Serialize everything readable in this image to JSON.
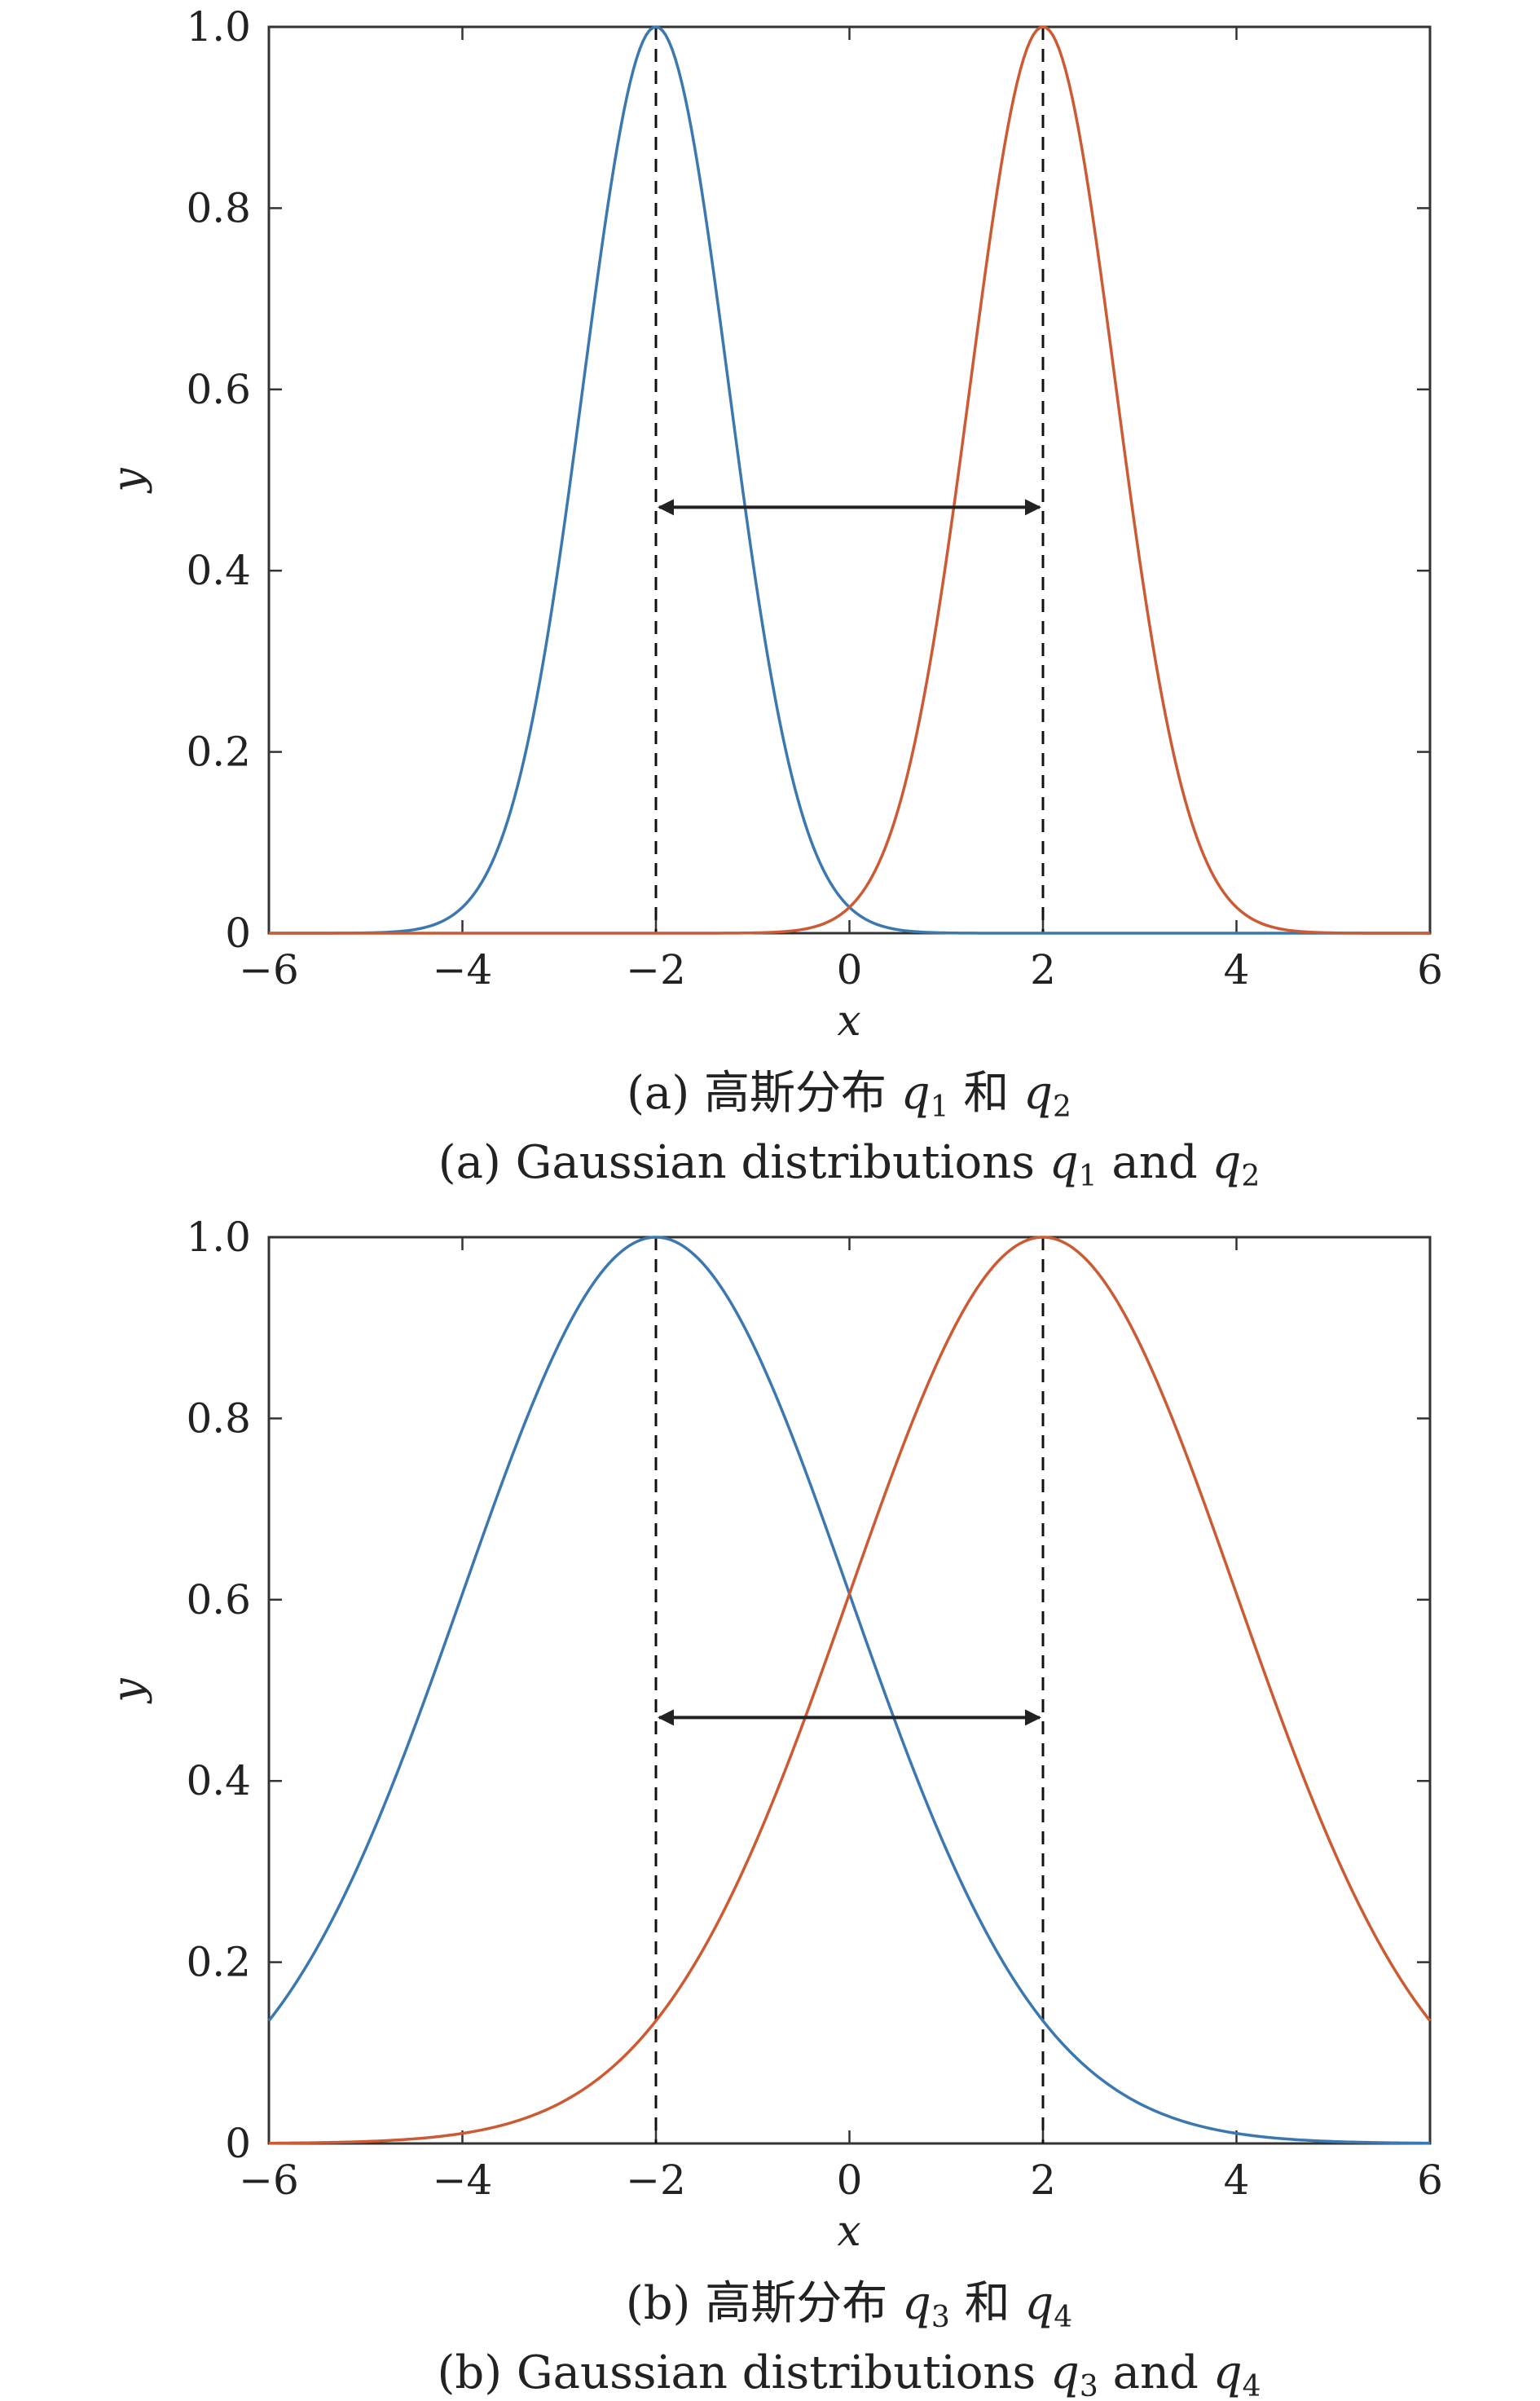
{
  "chart_data": [
    {
      "type": "line",
      "panel": "a",
      "xlabel": "x",
      "ylabel": "y",
      "xlim": [
        -6,
        6
      ],
      "ylim": [
        0,
        1
      ],
      "xticks": [
        -6,
        -4,
        -2,
        0,
        2,
        4,
        6
      ],
      "xtick_labels": [
        "−6",
        "−4",
        "−2",
        "0",
        "2",
        "4",
        "6"
      ],
      "yticks": [
        0,
        0.2,
        0.4,
        0.6,
        0.8,
        1.0
      ],
      "ytick_labels": [
        "0",
        "0.2",
        "0.4",
        "0.6",
        "0.8",
        "1.0"
      ],
      "grid": false,
      "series": [
        {
          "color": "#3b78b0",
          "mean": -2,
          "sigma": 0.75,
          "x": [
            -6,
            -5,
            -4,
            -3.5,
            -3,
            -2.5,
            -2,
            -1.5,
            -1,
            -0.5,
            0,
            1,
            2
          ],
          "y": [
            0.0,
            0.0,
            0.03,
            0.14,
            0.41,
            0.8,
            1.0,
            0.8,
            0.41,
            0.14,
            0.03,
            0.0,
            0.0
          ]
        },
        {
          "color": "#cc5a33",
          "mean": 2,
          "sigma": 0.75,
          "x": [
            -2,
            -1,
            0,
            0.5,
            1,
            1.5,
            2,
            2.5,
            3,
            3.5,
            4,
            5,
            6
          ],
          "y": [
            0.0,
            0.0,
            0.03,
            0.14,
            0.41,
            0.8,
            1.0,
            0.8,
            0.41,
            0.14,
            0.03,
            0.0,
            0.0
          ]
        }
      ],
      "reference_lines": {
        "x": [
          -2,
          2
        ],
        "style": "dashed",
        "color": "#111111"
      },
      "annotation": {
        "type": "double-arrow",
        "from_x": -2,
        "to_x": 2,
        "y": 0.47
      },
      "caption_zh": {
        "prefix": "(a) 高斯分布 ",
        "var1": "q",
        "sub1": "1",
        "mid": " 和 ",
        "var2": "q",
        "sub2": "2"
      },
      "caption_en": {
        "prefix": "(a) Gaussian distributions ",
        "var1": "q",
        "sub1": "1",
        "mid": " and ",
        "var2": "q",
        "sub2": "2"
      }
    },
    {
      "type": "line",
      "panel": "b",
      "xlabel": "x",
      "ylabel": "y",
      "xlim": [
        -6,
        6
      ],
      "ylim": [
        0,
        1
      ],
      "xticks": [
        -6,
        -4,
        -2,
        0,
        2,
        4,
        6
      ],
      "xtick_labels": [
        "−6",
        "−4",
        "−2",
        "0",
        "2",
        "4",
        "6"
      ],
      "yticks": [
        0,
        0.2,
        0.4,
        0.6,
        0.8,
        1.0
      ],
      "ytick_labels": [
        "0",
        "0.2",
        "0.4",
        "0.6",
        "0.8",
        "1.0"
      ],
      "grid": false,
      "series": [
        {
          "color": "#3b78b0",
          "mean": -2,
          "sigma": 2,
          "x": [
            -6,
            -5,
            -4,
            -3,
            -2,
            -1,
            0,
            1,
            2,
            3,
            4,
            5,
            6
          ],
          "y": [
            0.14,
            0.32,
            0.61,
            0.88,
            1.0,
            0.88,
            0.61,
            0.32,
            0.14,
            0.04,
            0.01,
            0.0,
            0.0
          ]
        },
        {
          "color": "#cc5a33",
          "mean": 2,
          "sigma": 2,
          "x": [
            -6,
            -5,
            -4,
            -3,
            -2,
            -1,
            0,
            1,
            2,
            3,
            4,
            5,
            6
          ],
          "y": [
            0.0,
            0.0,
            0.01,
            0.04,
            0.14,
            0.32,
            0.61,
            0.88,
            1.0,
            0.88,
            0.61,
            0.32,
            0.14
          ]
        }
      ],
      "reference_lines": {
        "x": [
          -2,
          2
        ],
        "style": "dashed",
        "color": "#111111"
      },
      "annotation": {
        "type": "double-arrow",
        "from_x": -2,
        "to_x": 2,
        "y": 0.47
      },
      "caption_zh": {
        "prefix": "(b) 高斯分布 ",
        "var1": "q",
        "sub1": "3",
        "mid": " 和 ",
        "var2": "q",
        "sub2": "4"
      },
      "caption_en": {
        "prefix": "(b) Gaussian distributions ",
        "var1": "q",
        "sub1": "3",
        "mid": " and ",
        "var2": "q",
        "sub2": "4"
      }
    }
  ]
}
